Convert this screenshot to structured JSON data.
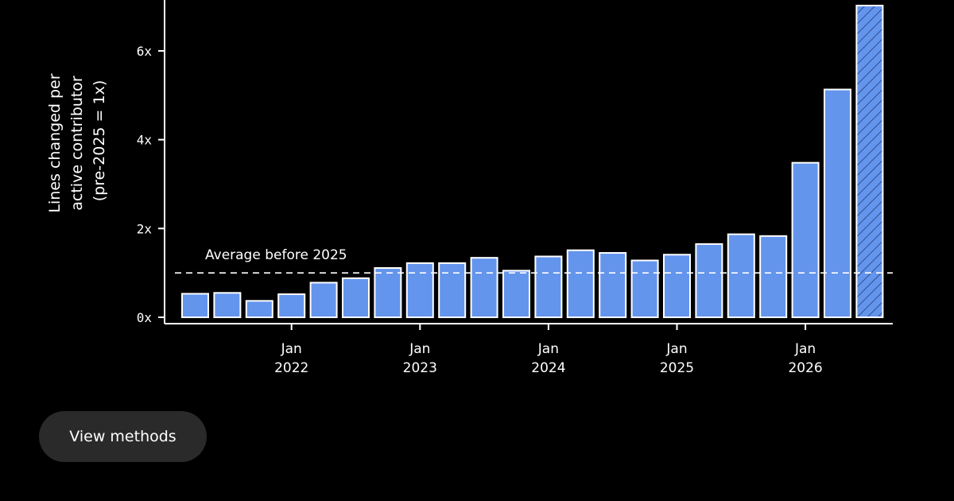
{
  "chart_data": {
    "type": "bar",
    "ylabel": [
      "Lines changed per",
      "active contributor",
      "(pre-2025 = 1x)"
    ],
    "ylim": [
      0,
      7.2
    ],
    "yticks": [
      {
        "value": 0,
        "label": "0x"
      },
      {
        "value": 2,
        "label": "2x"
      },
      {
        "value": 4,
        "label": "4x"
      },
      {
        "value": 6,
        "label": "6x"
      }
    ],
    "xticks": [
      {
        "bar_index": 3.5,
        "month": "Jan",
        "year": "2022"
      },
      {
        "bar_index": 7.5,
        "month": "Jan",
        "year": "2023"
      },
      {
        "bar_index": 11.5,
        "month": "Jan",
        "year": "2024"
      },
      {
        "bar_index": 15.5,
        "month": "Jan",
        "year": "2025"
      },
      {
        "bar_index": 19.5,
        "month": "Jan",
        "year": "2026"
      }
    ],
    "values": [
      0.53,
      0.55,
      0.37,
      0.52,
      0.78,
      0.88,
      1.11,
      1.22,
      1.22,
      1.34,
      1.05,
      1.37,
      1.51,
      1.45,
      1.28,
      1.41,
      1.65,
      1.87,
      1.83,
      3.48,
      5.13,
      7.02
    ],
    "hatched": [
      false,
      false,
      false,
      false,
      false,
      false,
      false,
      false,
      false,
      false,
      false,
      false,
      false,
      false,
      false,
      false,
      false,
      false,
      false,
      false,
      false,
      true
    ],
    "reference_line": {
      "value": 1.0,
      "label": "Average before 2025"
    },
    "bar_color": "#6495ed",
    "grid": false,
    "legend": "none"
  },
  "footer": {
    "methods_label": "View methods"
  }
}
